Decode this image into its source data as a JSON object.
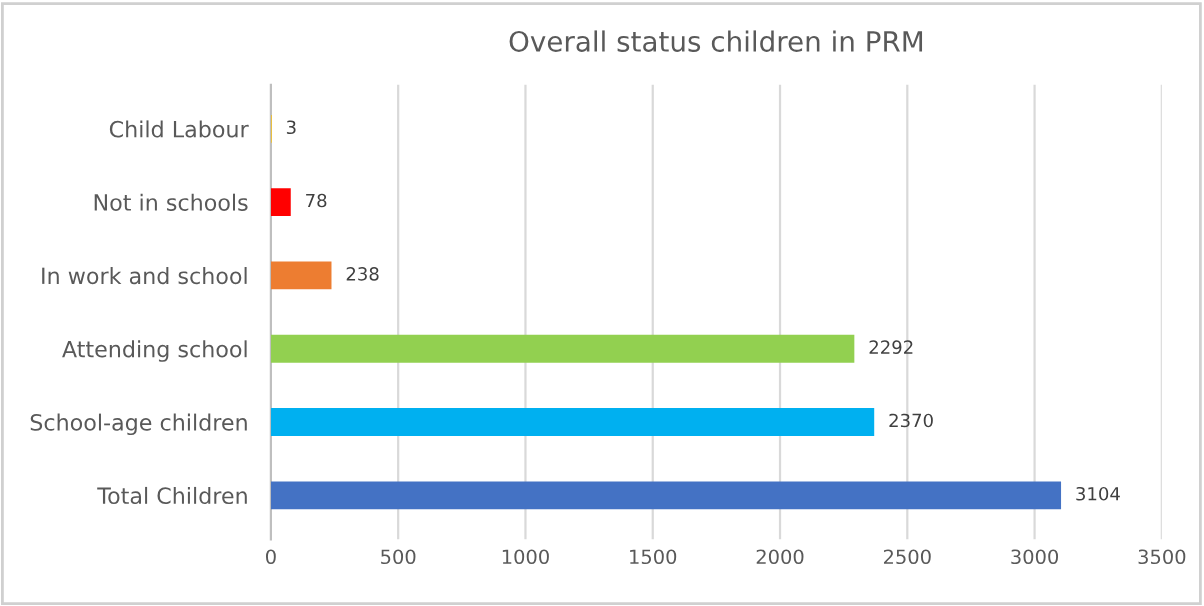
{
  "chart_data": {
    "type": "bar",
    "orientation": "horizontal",
    "title": "Overall status children in PRM",
    "categories": [
      "Child Labour",
      "Not in schools",
      "In work and school",
      "Attending school",
      "School-age children",
      "Total Children"
    ],
    "values": [
      3,
      78,
      238,
      2292,
      2370,
      3104
    ],
    "colors": [
      "#ffc000",
      "#ff0000",
      "#ed7d31",
      "#92d050",
      "#00b0f0",
      "#4472c4"
    ],
    "xlim": [
      0,
      3500
    ],
    "xticks": [
      0,
      500,
      1000,
      1500,
      2000,
      2500,
      3000,
      3500
    ],
    "grid": "x",
    "data_labels": true
  }
}
